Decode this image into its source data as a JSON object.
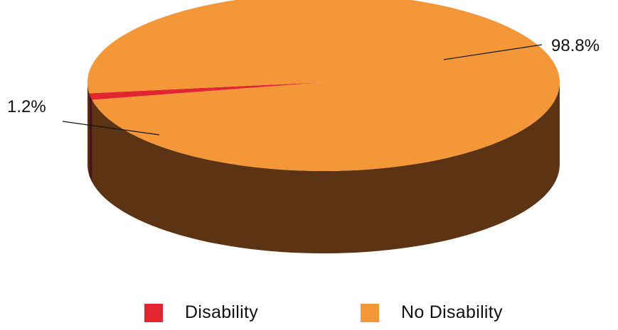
{
  "chart_data": {
    "type": "pie",
    "style": "3d",
    "series": [
      {
        "name": "Disability",
        "value": 1.2,
        "label": "1.2%",
        "color": "#e22530",
        "side_color": "#4a1216"
      },
      {
        "name": "No Disability",
        "value": 98.8,
        "label": "98.8%",
        "color": "#f39739",
        "side_color": "#5c3414"
      }
    ],
    "legend_position": "bottom"
  }
}
